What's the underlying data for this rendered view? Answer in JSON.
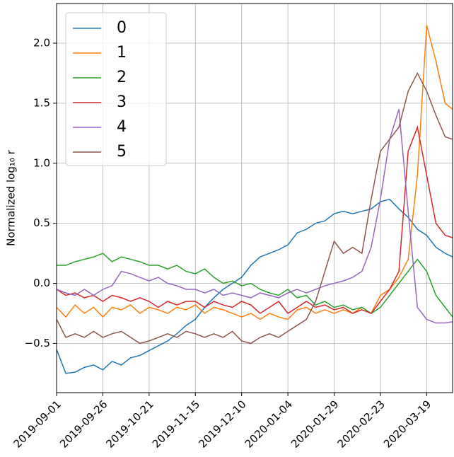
{
  "chart_data": {
    "type": "line",
    "ylabel": "Normalized log₁₀ r",
    "x": [
      "2019-09-01",
      "2019-09-06",
      "2019-09-11",
      "2019-09-16",
      "2019-09-21",
      "2019-09-26",
      "2019-10-01",
      "2019-10-06",
      "2019-10-11",
      "2019-10-16",
      "2019-10-21",
      "2019-10-26",
      "2019-10-31",
      "2019-11-05",
      "2019-11-10",
      "2019-11-15",
      "2019-11-20",
      "2019-11-25",
      "2019-11-30",
      "2019-12-05",
      "2019-12-10",
      "2019-12-15",
      "2019-12-20",
      "2019-12-25",
      "2019-12-30",
      "2020-01-04",
      "2020-01-09",
      "2020-01-14",
      "2020-01-19",
      "2020-01-24",
      "2020-01-29",
      "2020-02-03",
      "2020-02-08",
      "2020-02-13",
      "2020-02-18",
      "2020-02-23",
      "2020-02-28",
      "2020-03-04",
      "2020-03-09",
      "2020-03-14",
      "2020-03-19",
      "2020-03-24",
      "2020-03-29",
      "2020-04-02"
    ],
    "xlim": [
      "2019-09-01",
      "2020-04-02"
    ],
    "xticks": [
      "2019-09-01",
      "2019-09-26",
      "2019-10-21",
      "2019-11-15",
      "2019-12-10",
      "2020-01-04",
      "2020-01-29",
      "2020-02-23",
      "2020-03-19"
    ],
    "ylim": [
      -0.91,
      2.33
    ],
    "yticks": [
      {
        "value": -0.5,
        "label": "−0.5"
      },
      {
        "value": 0,
        "label": "0.0"
      },
      0.5,
      {
        "value": 1,
        "label": "1.0"
      },
      1.5,
      {
        "value": 2,
        "label": "2.0"
      }
    ],
    "grid": true,
    "legend": "upper left",
    "series": [
      {
        "name": "0",
        "color": "#1f77b4",
        "values": [
          -0.55,
          -0.75,
          -0.74,
          -0.7,
          -0.68,
          -0.72,
          -0.65,
          -0.68,
          -0.62,
          -0.6,
          -0.56,
          -0.52,
          -0.48,
          -0.42,
          -0.35,
          -0.3,
          -0.2,
          -0.12,
          -0.05,
          0.0,
          0.05,
          0.15,
          0.22,
          0.25,
          0.28,
          0.32,
          0.42,
          0.45,
          0.5,
          0.52,
          0.58,
          0.6,
          0.58,
          0.6,
          0.62,
          0.68,
          0.7,
          0.62,
          0.55,
          0.45,
          0.4,
          0.3,
          0.25,
          0.22
        ]
      },
      {
        "name": "1",
        "color": "#ff7f0e",
        "values": [
          -0.2,
          -0.28,
          -0.18,
          -0.25,
          -0.2,
          -0.28,
          -0.2,
          -0.22,
          -0.18,
          -0.25,
          -0.2,
          -0.22,
          -0.25,
          -0.2,
          -0.22,
          -0.18,
          -0.25,
          -0.2,
          -0.22,
          -0.25,
          -0.28,
          -0.25,
          -0.3,
          -0.25,
          -0.28,
          -0.3,
          -0.22,
          -0.2,
          -0.25,
          -0.22,
          -0.25,
          -0.22,
          -0.25,
          -0.2,
          -0.25,
          -0.1,
          -0.05,
          0.05,
          0.2,
          0.9,
          2.15,
          1.85,
          1.5,
          1.45
        ]
      },
      {
        "name": "2",
        "color": "#2ca02c",
        "values": [
          0.15,
          0.15,
          0.18,
          0.2,
          0.22,
          0.25,
          0.18,
          0.22,
          0.2,
          0.18,
          0.15,
          0.15,
          0.12,
          0.15,
          0.1,
          0.08,
          0.12,
          0.05,
          0.0,
          0.02,
          -0.02,
          0.0,
          -0.05,
          -0.08,
          -0.1,
          -0.05,
          -0.12,
          -0.1,
          -0.18,
          -0.15,
          -0.2,
          -0.18,
          -0.22,
          -0.2,
          -0.25,
          -0.2,
          -0.1,
          0.0,
          0.1,
          0.2,
          0.1,
          -0.1,
          -0.2,
          -0.28
        ]
      },
      {
        "name": "3",
        "color": "#d62728",
        "values": [
          -0.05,
          -0.1,
          -0.08,
          -0.12,
          -0.1,
          -0.15,
          -0.1,
          -0.12,
          -0.15,
          -0.12,
          -0.15,
          -0.2,
          -0.15,
          -0.18,
          -0.15,
          -0.15,
          -0.2,
          -0.15,
          -0.18,
          -0.2,
          -0.15,
          -0.18,
          -0.25,
          -0.2,
          -0.15,
          -0.25,
          -0.2,
          -0.15,
          -0.2,
          -0.18,
          -0.22,
          -0.2,
          -0.25,
          -0.22,
          -0.25,
          -0.15,
          -0.05,
          0.1,
          1.1,
          1.3,
          0.9,
          0.5,
          0.4,
          0.38
        ]
      },
      {
        "name": "4",
        "color": "#9467bd",
        "values": [
          -0.05,
          -0.08,
          -0.1,
          -0.05,
          -0.1,
          -0.05,
          -0.02,
          0.1,
          0.08,
          0.05,
          0.02,
          0.05,
          0.0,
          -0.02,
          -0.05,
          -0.05,
          -0.08,
          -0.05,
          -0.1,
          -0.08,
          -0.1,
          -0.12,
          -0.08,
          -0.1,
          -0.12,
          -0.08,
          -0.05,
          -0.08,
          -0.05,
          -0.02,
          0.0,
          0.02,
          0.05,
          0.1,
          0.3,
          0.7,
          1.2,
          1.45,
          0.6,
          -0.2,
          -0.3,
          -0.33,
          -0.33,
          -0.32
        ]
      },
      {
        "name": "5",
        "color": "#8c564b",
        "values": [
          -0.3,
          -0.45,
          -0.42,
          -0.45,
          -0.4,
          -0.45,
          -0.42,
          -0.4,
          -0.45,
          -0.5,
          -0.48,
          -0.45,
          -0.42,
          -0.45,
          -0.4,
          -0.42,
          -0.45,
          -0.42,
          -0.45,
          -0.4,
          -0.48,
          -0.5,
          -0.45,
          -0.42,
          -0.45,
          -0.4,
          -0.35,
          -0.3,
          -0.15,
          0.1,
          0.35,
          0.25,
          0.3,
          0.25,
          0.7,
          1.1,
          1.2,
          1.3,
          1.6,
          1.75,
          1.6,
          1.4,
          1.22,
          1.2
        ]
      }
    ]
  }
}
